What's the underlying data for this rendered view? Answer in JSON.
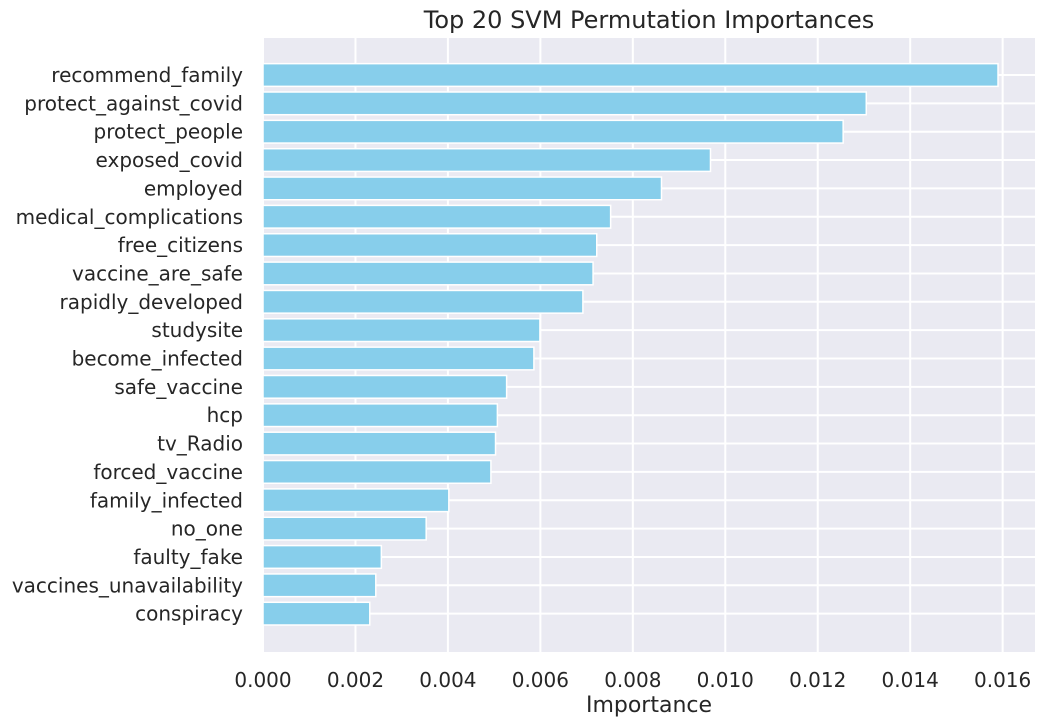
{
  "chart_data": {
    "type": "bar",
    "orientation": "horizontal",
    "title": "Top 20 SVM Permutation Importances",
    "xlabel": "Importance",
    "ylabel": "",
    "xlim": [
      0,
      0.0167
    ],
    "xticks": [
      "0.000",
      "0.002",
      "0.004",
      "0.006",
      "0.008",
      "0.010",
      "0.012",
      "0.014",
      "0.016"
    ],
    "grid": true,
    "bar_color": "#87CEEB",
    "background_color": "#EAEAF2",
    "categories": [
      "recommend_family",
      "protect_against_covid",
      "protect_people",
      "exposed_covid",
      "employed",
      "medical_complications",
      "free_citizens",
      "vaccine_are_safe",
      "rapidly_developed",
      "studysite",
      "become_infected",
      "safe_vaccine",
      "hcp",
      "tv_Radio",
      "forced_vaccine",
      "family_infected",
      "no_one",
      "faulty_fake",
      "vaccines_unavailability",
      "conspiracy"
    ],
    "values": [
      0.0159,
      0.01305,
      0.01255,
      0.00968,
      0.00862,
      0.00752,
      0.00722,
      0.00714,
      0.00692,
      0.00599,
      0.00586,
      0.00527,
      0.00507,
      0.00503,
      0.00493,
      0.00402,
      0.00353,
      0.00256,
      0.00244,
      0.00231
    ]
  }
}
